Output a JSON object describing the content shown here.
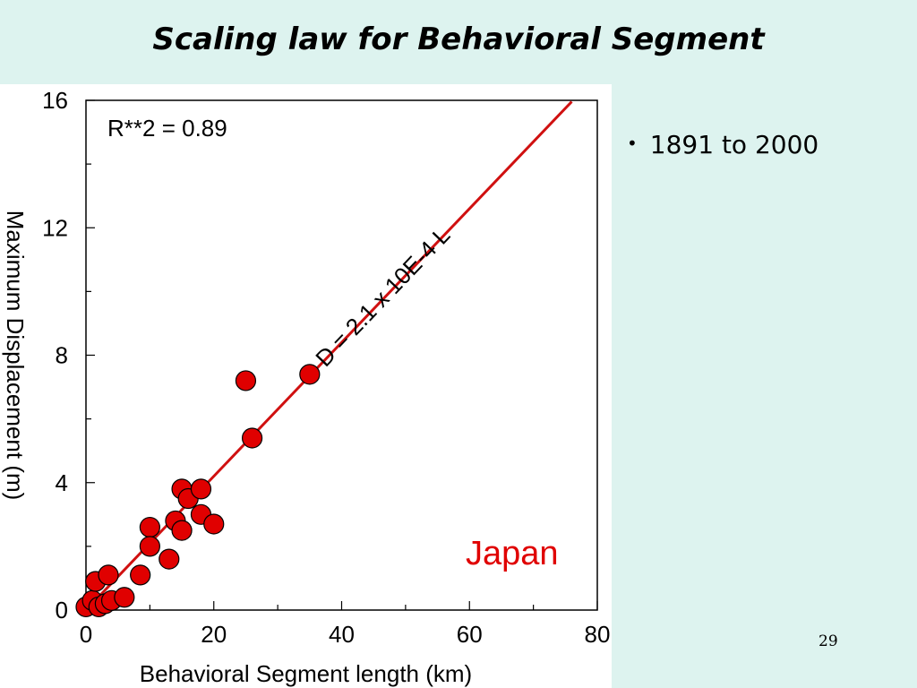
{
  "slide": {
    "title": "Scaling law for Behavioral Segment",
    "bullet": "1891 to 2000",
    "page_number": "29"
  },
  "chart_data": {
    "type": "scatter",
    "title": "",
    "xlabel": "Behavioral Segment length (km)",
    "ylabel": "Maximum Displacement (m)",
    "xlim": [
      0,
      80
    ],
    "ylim": [
      0,
      16
    ],
    "x_ticks": [
      "0",
      "20",
      "40",
      "60",
      "80"
    ],
    "y_ticks": [
      "0",
      "4",
      "8",
      "12",
      "16"
    ],
    "grid": false,
    "r_squared_label": "R**2 = 0.89",
    "fit_label": "D = 2.1 x 10E-4 L",
    "region_label": "Japan",
    "fit_line": {
      "slope": 0.21,
      "intercept": 0,
      "x_range": [
        0,
        76
      ]
    },
    "colors": {
      "points": "#e00000",
      "line": "#d01010",
      "region_label": "#e00000"
    },
    "series": [
      {
        "points": [
          [
            0,
            0.1
          ],
          [
            1,
            0.3
          ],
          [
            1.5,
            0.9
          ],
          [
            2,
            0.1
          ],
          [
            3,
            0.2
          ],
          [
            3.5,
            1.1
          ],
          [
            4,
            0.3
          ],
          [
            6,
            0.4
          ],
          [
            8.5,
            1.1
          ],
          [
            10,
            2.6
          ],
          [
            10,
            2.0
          ],
          [
            13,
            1.6
          ],
          [
            14,
            2.8
          ],
          [
            15,
            2.5
          ],
          [
            15,
            3.8
          ],
          [
            16,
            3.5
          ],
          [
            18,
            3.0
          ],
          [
            18,
            3.8
          ],
          [
            20,
            2.7
          ],
          [
            25,
            7.2
          ],
          [
            26,
            5.4
          ],
          [
            35,
            7.4
          ]
        ]
      }
    ]
  }
}
